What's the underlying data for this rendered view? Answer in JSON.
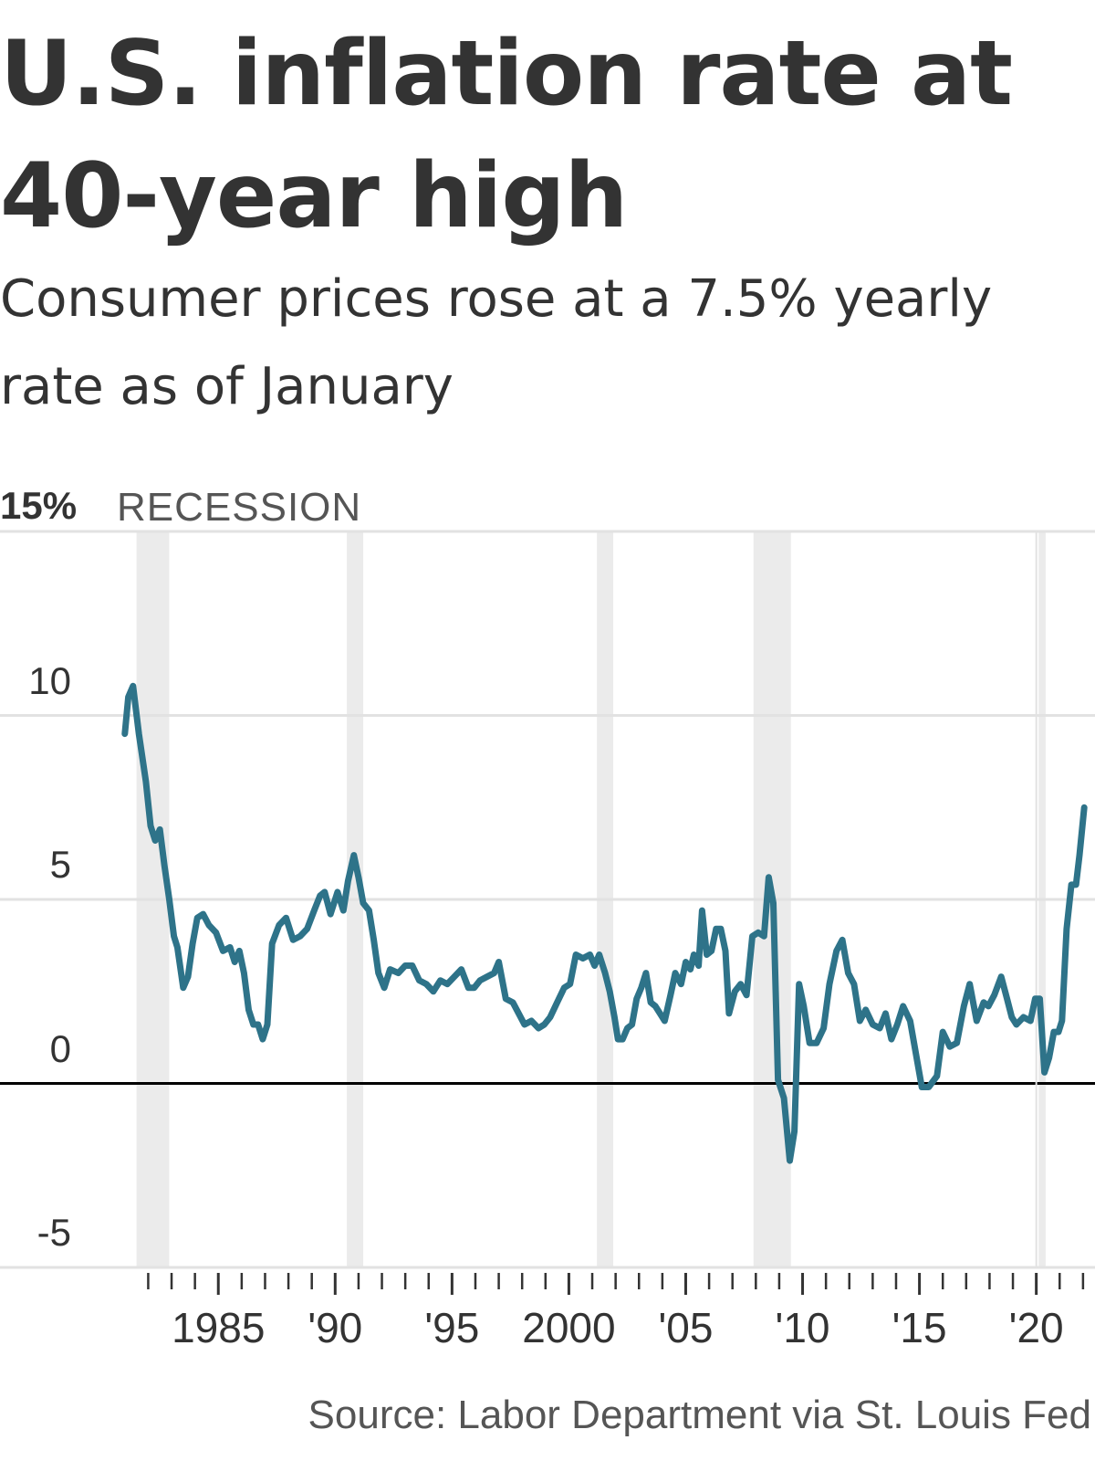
{
  "header": {
    "title": "U.S. inflation rate at 40-year high",
    "subtitle": "Consumer prices rose at a 7.5% yearly rate as of January"
  },
  "legend": {
    "recession_label": "RECESSION"
  },
  "source": "Source: Labor Department via St. Louis Fed",
  "colors": {
    "line": "#2E7389",
    "recession": "#EBEBEB",
    "grid": "#E2E2E2",
    "zero_line": "#000000",
    "text": "#333333"
  },
  "chart_data": {
    "type": "line",
    "title": "U.S. inflation rate at 40-year high",
    "subtitle": "Consumer prices rose at a 7.5% yearly rate as of January",
    "xlabel": "",
    "ylabel": "",
    "ylim": [
      -5,
      15
    ],
    "xlim": [
      1980.5,
      2022.2
    ],
    "y_ticks": [
      {
        "value": 15,
        "label": "15%"
      },
      {
        "value": 10,
        "label": "10"
      },
      {
        "value": 5,
        "label": "5"
      },
      {
        "value": 0,
        "label": "0"
      },
      {
        "value": -5,
        "label": "-5"
      }
    ],
    "x_ticks": [
      {
        "value": 1985,
        "label": "1985"
      },
      {
        "value": 1990,
        "label": "'90"
      },
      {
        "value": 1995,
        "label": "'95"
      },
      {
        "value": 2000,
        "label": "2000"
      },
      {
        "value": 2005,
        "label": "'05"
      },
      {
        "value": 2010,
        "label": "'10"
      },
      {
        "value": 2015,
        "label": "'15"
      },
      {
        "value": 2020,
        "label": "'20"
      }
    ],
    "grid": true,
    "recessions": [
      [
        1981.5,
        1982.9
      ],
      [
        1990.5,
        1991.2
      ],
      [
        2001.2,
        2001.9
      ],
      [
        2007.9,
        2009.5
      ],
      [
        2020.1,
        2020.4
      ]
    ],
    "series": [
      {
        "values": [
          [
            1981.0,
            9.5
          ],
          [
            1981.15,
            10.5
          ],
          [
            1981.35,
            10.8
          ],
          [
            1981.6,
            9.5
          ],
          [
            1981.9,
            8.2
          ],
          [
            1982.1,
            7.0
          ],
          [
            1982.3,
            6.6
          ],
          [
            1982.5,
            6.9
          ],
          [
            1982.7,
            5.9
          ],
          [
            1982.9,
            5.0
          ],
          [
            1983.1,
            4.0
          ],
          [
            1983.25,
            3.7
          ],
          [
            1983.5,
            2.6
          ],
          [
            1983.7,
            2.9
          ],
          [
            1983.9,
            3.8
          ],
          [
            1984.1,
            4.5
          ],
          [
            1984.35,
            4.6
          ],
          [
            1984.6,
            4.3
          ],
          [
            1984.9,
            4.1
          ],
          [
            1985.2,
            3.6
          ],
          [
            1985.5,
            3.7
          ],
          [
            1985.7,
            3.3
          ],
          [
            1985.9,
            3.6
          ],
          [
            1986.1,
            3.0
          ],
          [
            1986.3,
            2.0
          ],
          [
            1986.5,
            1.6
          ],
          [
            1986.7,
            1.6
          ],
          [
            1986.9,
            1.2
          ],
          [
            1987.1,
            1.6
          ],
          [
            1987.3,
            3.8
          ],
          [
            1987.6,
            4.3
          ],
          [
            1987.9,
            4.5
          ],
          [
            1988.2,
            3.9
          ],
          [
            1988.5,
            4.0
          ],
          [
            1988.8,
            4.2
          ],
          [
            1989.1,
            4.7
          ],
          [
            1989.35,
            5.1
          ],
          [
            1989.55,
            5.2
          ],
          [
            1989.8,
            4.6
          ],
          [
            1990.1,
            5.2
          ],
          [
            1990.35,
            4.7
          ],
          [
            1990.55,
            5.5
          ],
          [
            1990.8,
            6.2
          ],
          [
            1991.0,
            5.6
          ],
          [
            1991.2,
            4.9
          ],
          [
            1991.45,
            4.7
          ],
          [
            1991.65,
            3.9
          ],
          [
            1991.85,
            3.0
          ],
          [
            1992.1,
            2.6
          ],
          [
            1992.35,
            3.1
          ],
          [
            1992.7,
            3.0
          ],
          [
            1993.0,
            3.2
          ],
          [
            1993.3,
            3.2
          ],
          [
            1993.6,
            2.8
          ],
          [
            1993.9,
            2.7
          ],
          [
            1994.2,
            2.5
          ],
          [
            1994.5,
            2.8
          ],
          [
            1994.8,
            2.7
          ],
          [
            1995.1,
            2.9
          ],
          [
            1995.4,
            3.1
          ],
          [
            1995.7,
            2.6
          ],
          [
            1995.95,
            2.6
          ],
          [
            1996.2,
            2.8
          ],
          [
            1996.5,
            2.9
          ],
          [
            1996.8,
            3.0
          ],
          [
            1997.0,
            3.3
          ],
          [
            1997.3,
            2.3
          ],
          [
            1997.6,
            2.2
          ],
          [
            1997.85,
            1.9
          ],
          [
            1998.1,
            1.6
          ],
          [
            1998.4,
            1.7
          ],
          [
            1998.7,
            1.5
          ],
          [
            1998.95,
            1.6
          ],
          [
            1999.2,
            1.8
          ],
          [
            1999.5,
            2.2
          ],
          [
            1999.8,
            2.6
          ],
          [
            2000.05,
            2.7
          ],
          [
            2000.3,
            3.5
          ],
          [
            2000.6,
            3.4
          ],
          [
            2000.9,
            3.5
          ],
          [
            2001.1,
            3.2
          ],
          [
            2001.3,
            3.5
          ],
          [
            2001.55,
            3.0
          ],
          [
            2001.75,
            2.5
          ],
          [
            2001.95,
            1.8
          ],
          [
            2002.1,
            1.2
          ],
          [
            2002.3,
            1.2
          ],
          [
            2002.5,
            1.5
          ],
          [
            2002.7,
            1.6
          ],
          [
            2002.9,
            2.3
          ],
          [
            2003.1,
            2.6
          ],
          [
            2003.3,
            3.0
          ],
          [
            2003.5,
            2.2
          ],
          [
            2003.7,
            2.1
          ],
          [
            2003.9,
            1.9
          ],
          [
            2004.1,
            1.7
          ],
          [
            2004.35,
            2.4
          ],
          [
            2004.55,
            3.0
          ],
          [
            2004.8,
            2.7
          ],
          [
            2005.0,
            3.3
          ],
          [
            2005.2,
            3.1
          ],
          [
            2005.35,
            3.5
          ],
          [
            2005.55,
            3.2
          ],
          [
            2005.7,
            4.7
          ],
          [
            2005.9,
            3.5
          ],
          [
            2006.1,
            3.6
          ],
          [
            2006.3,
            4.2
          ],
          [
            2006.5,
            4.2
          ],
          [
            2006.7,
            3.6
          ],
          [
            2006.85,
            1.9
          ],
          [
            2007.1,
            2.5
          ],
          [
            2007.35,
            2.7
          ],
          [
            2007.6,
            2.4
          ],
          [
            2007.85,
            4.0
          ],
          [
            2008.1,
            4.1
          ],
          [
            2008.35,
            4.0
          ],
          [
            2008.55,
            5.6
          ],
          [
            2008.75,
            4.9
          ],
          [
            2008.95,
            0.1
          ],
          [
            2009.2,
            -0.4
          ],
          [
            2009.45,
            -2.1
          ],
          [
            2009.65,
            -1.3
          ],
          [
            2009.85,
            2.7
          ],
          [
            2010.05,
            2.1
          ],
          [
            2010.3,
            1.1
          ],
          [
            2010.6,
            1.1
          ],
          [
            2010.9,
            1.5
          ],
          [
            2011.15,
            2.7
          ],
          [
            2011.45,
            3.6
          ],
          [
            2011.7,
            3.9
          ],
          [
            2011.95,
            3.0
          ],
          [
            2012.2,
            2.7
          ],
          [
            2012.45,
            1.7
          ],
          [
            2012.7,
            2.0
          ],
          [
            2013.0,
            1.6
          ],
          [
            2013.3,
            1.5
          ],
          [
            2013.55,
            1.9
          ],
          [
            2013.8,
            1.2
          ],
          [
            2014.05,
            1.6
          ],
          [
            2014.3,
            2.1
          ],
          [
            2014.6,
            1.7
          ],
          [
            2014.85,
            0.8
          ],
          [
            2015.1,
            -0.1
          ],
          [
            2015.4,
            -0.1
          ],
          [
            2015.75,
            0.2
          ],
          [
            2016.0,
            1.4
          ],
          [
            2016.3,
            1.0
          ],
          [
            2016.6,
            1.1
          ],
          [
            2016.9,
            2.1
          ],
          [
            2017.15,
            2.7
          ],
          [
            2017.45,
            1.7
          ],
          [
            2017.75,
            2.2
          ],
          [
            2017.95,
            2.1
          ],
          [
            2018.2,
            2.4
          ],
          [
            2018.5,
            2.9
          ],
          [
            2018.75,
            2.3
          ],
          [
            2018.95,
            1.8
          ],
          [
            2019.15,
            1.6
          ],
          [
            2019.45,
            1.8
          ],
          [
            2019.75,
            1.7
          ],
          [
            2019.95,
            2.3
          ],
          [
            2020.15,
            2.3
          ],
          [
            2020.35,
            0.3
          ],
          [
            2020.55,
            0.7
          ],
          [
            2020.75,
            1.4
          ],
          [
            2020.95,
            1.4
          ],
          [
            2021.1,
            1.7
          ],
          [
            2021.3,
            4.2
          ],
          [
            2021.5,
            5.4
          ],
          [
            2021.7,
            5.4
          ],
          [
            2021.85,
            6.2
          ],
          [
            2022.05,
            7.5
          ]
        ]
      }
    ]
  }
}
